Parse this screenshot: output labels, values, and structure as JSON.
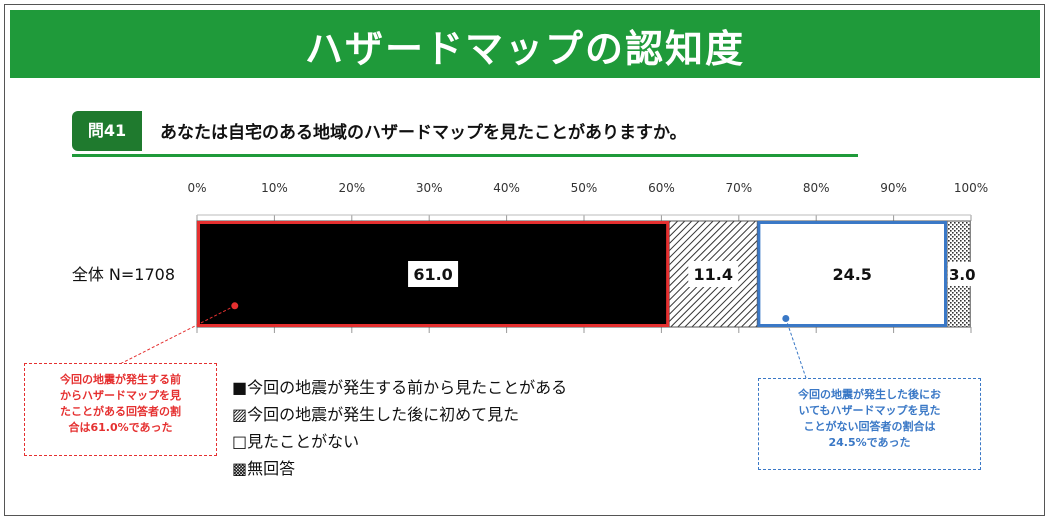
{
  "header": {
    "title": "ハザードマップの認知度"
  },
  "question": {
    "badge": "問41",
    "text": "あなたは自宅のある地域のハザードマップを見たことがありますか。"
  },
  "chart_data": {
    "type": "bar",
    "orientation": "horizontal",
    "stacked": true,
    "percent_axis": true,
    "xlim": [
      0,
      100
    ],
    "x_ticks": [
      "0%",
      "10%",
      "20%",
      "30%",
      "40%",
      "50%",
      "60%",
      "70%",
      "80%",
      "90%",
      "100%"
    ],
    "categories": [
      "全体 N=1708"
    ],
    "series": [
      {
        "name": "今回の地震が発生する前から見たことがある",
        "values": [
          61.0
        ],
        "label": "61.0",
        "fill": "#000000",
        "highlight": "#e53030"
      },
      {
        "name": "今回の地震が発生した後に初めて見た",
        "values": [
          11.4
        ],
        "label": "11.4",
        "fill": "hatch",
        "highlight": ""
      },
      {
        "name": "見たことがない",
        "values": [
          24.5
        ],
        "label": "24.5",
        "fill": "#ffffff",
        "highlight": "#3a78c6"
      },
      {
        "name": "無回答",
        "values": [
          3.0
        ],
        "label": "3.0",
        "fill": "dots",
        "highlight": ""
      }
    ],
    "legend": {
      "placement": "bottom-left",
      "items": [
        "■今回の地震が発生する前から見たことがある",
        "▨今回の地震が発生した後に初めて見た",
        "□見たことがない",
        "▩無回答"
      ]
    }
  },
  "annotations": {
    "red": [
      "今回の地震が発生する前",
      "からハザードマップを見",
      "たことがある回答者の割",
      "合は61.0%であった"
    ],
    "blue": [
      "今回の地震が発生した後にお",
      "いてもハザードマップを見た",
      "ことがない回答者の割合は",
      "24.5%であった"
    ]
  },
  "colors": {
    "header_green": "#1f9a3a",
    "badge_green": "#1f7a2e",
    "red": "#e53030",
    "blue": "#3a78c6"
  }
}
